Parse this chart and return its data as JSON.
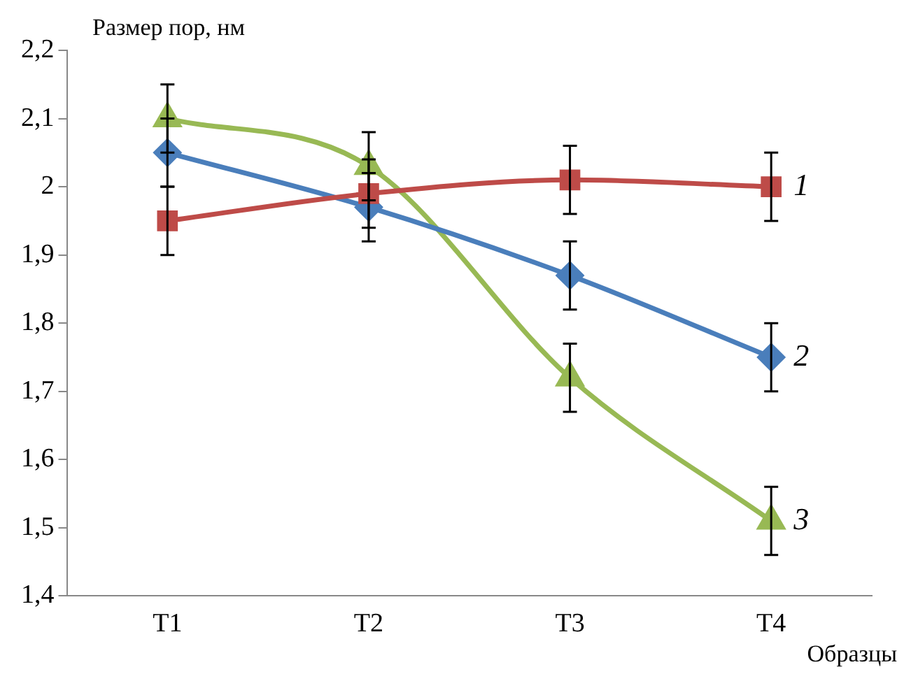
{
  "chart_data": {
    "type": "line",
    "ylabel": "Размер пор, нм",
    "xlabel": "Образцы",
    "categories": [
      "T1",
      "T2",
      "T3",
      "T4"
    ],
    "series": [
      {
        "name": "1",
        "color": "#be4b48",
        "marker": "square",
        "values": [
          1.95,
          1.99,
          2.01,
          2.0
        ],
        "errors": [
          0.05,
          0.05,
          0.05,
          0.05
        ]
      },
      {
        "name": "2",
        "color": "#4a7ebb",
        "marker": "diamond",
        "values": [
          2.05,
          1.97,
          1.87,
          1.75
        ],
        "errors": [
          0.05,
          0.05,
          0.05,
          0.05
        ]
      },
      {
        "name": "3",
        "color": "#98b954",
        "marker": "triangle",
        "values": [
          2.1,
          2.03,
          1.72,
          1.51
        ],
        "errors": [
          0.05,
          0.05,
          0.05,
          0.05
        ]
      }
    ],
    "ylim": [
      1.4,
      2.2
    ],
    "yticks": [
      {
        "value": 1.4,
        "label": "1,4"
      },
      {
        "value": 1.5,
        "label": "1,5"
      },
      {
        "value": 1.6,
        "label": "1,6"
      },
      {
        "value": 1.7,
        "label": "1,7"
      },
      {
        "value": 1.8,
        "label": "1,8"
      },
      {
        "value": 1.9,
        "label": "1,9"
      },
      2,
      {
        "value": 2.1,
        "label": "2,1"
      },
      {
        "value": 2.2,
        "label": "2,2"
      }
    ],
    "grid": false,
    "legend": false
  }
}
